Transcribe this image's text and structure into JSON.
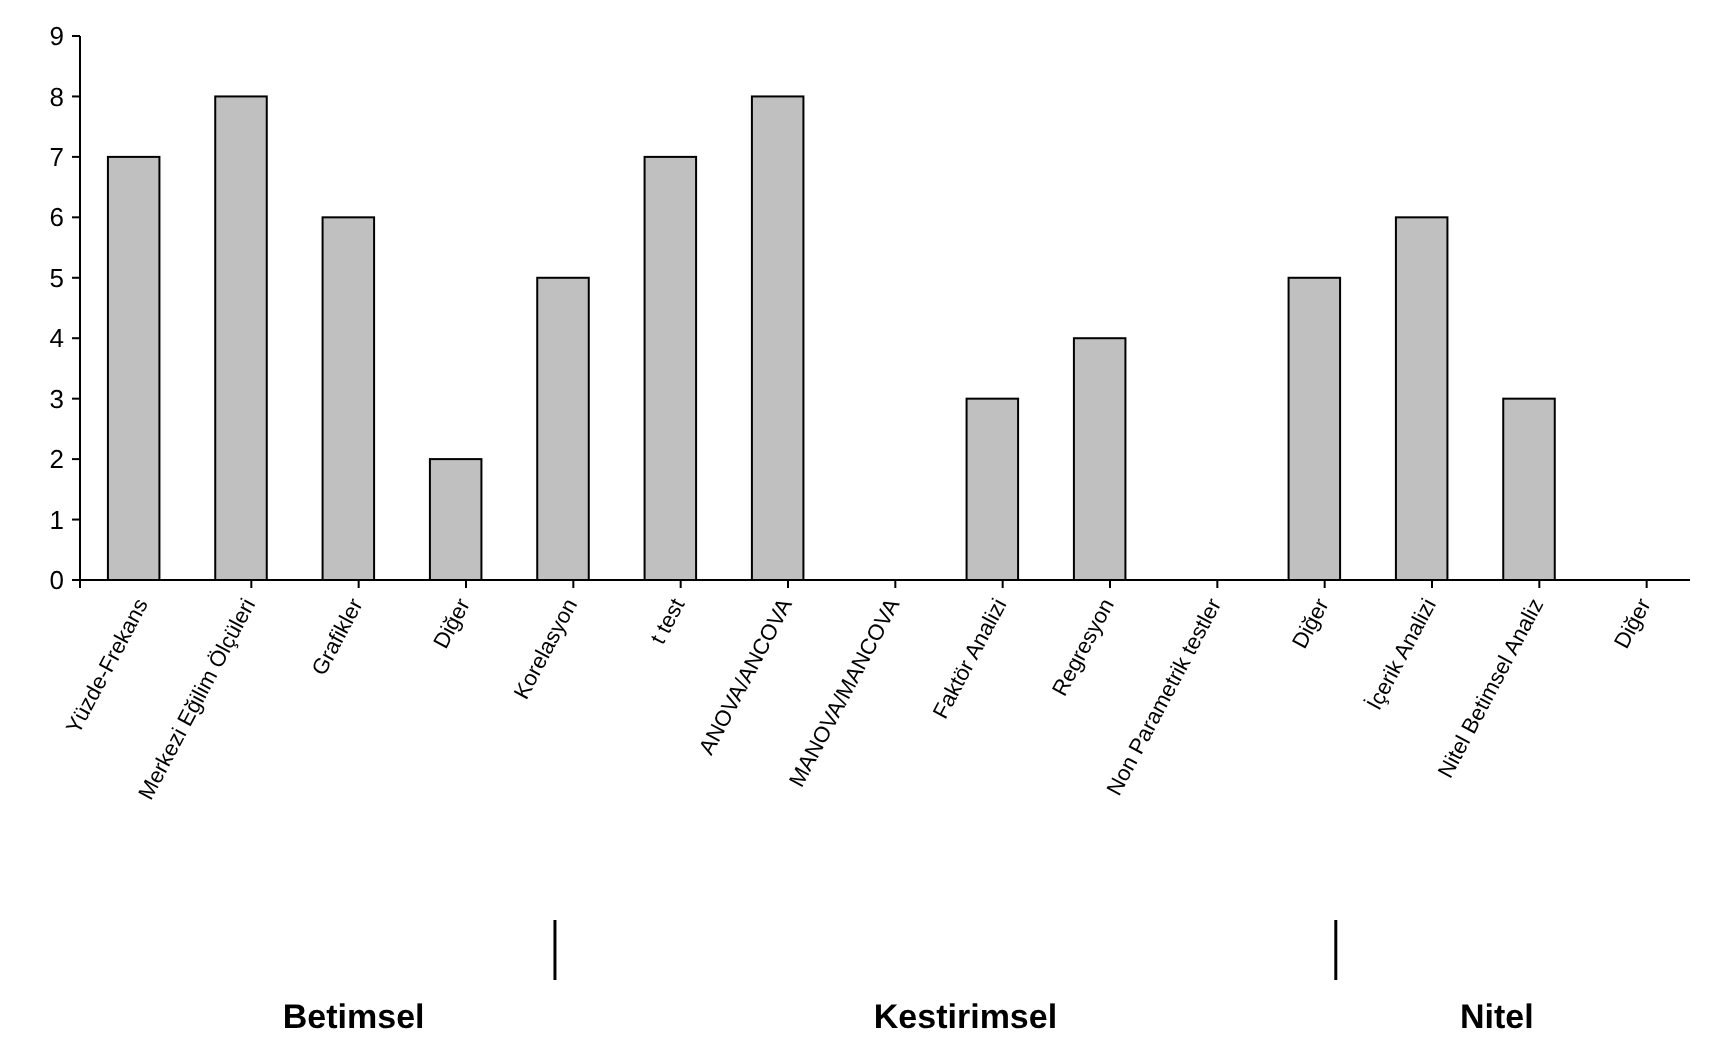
{
  "chart_data": {
    "type": "bar",
    "categories": [
      "Yüzde-Frekans",
      "Merkezi Eğilim Ölçüleri",
      "Grafikler",
      "Diğer",
      "Korelasyon",
      "t test",
      "ANOVA/ANCOVA",
      "MANOVA/MANCOVA",
      "Faktör Analizi",
      "Regresyon",
      "Non Parametrik testler",
      "Diğer",
      "İçerik Analizi",
      "Nitel Betimsel Analiz",
      "Diğer"
    ],
    "values": [
      7,
      8,
      6,
      2,
      5,
      7,
      8,
      0,
      3,
      4,
      0,
      5,
      6,
      3,
      0
    ],
    "color": "#c0c0c0",
    "ylim": [
      0,
      9
    ],
    "yticks": [
      0,
      1,
      2,
      3,
      4,
      5,
      6,
      7,
      8,
      9
    ],
    "grid": false,
    "annotations": [
      "Betimsel",
      "Kestirimsel",
      "Nitel"
    ]
  }
}
